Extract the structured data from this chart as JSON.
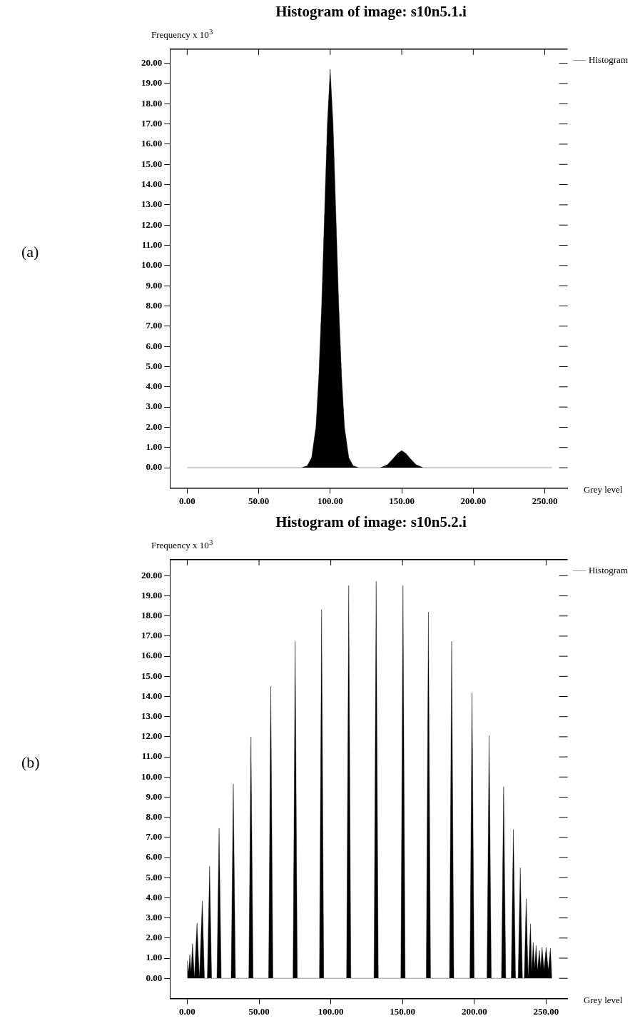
{
  "chart_data": [
    {
      "type": "area",
      "title": "Histogram of image: s10n5.1.i",
      "xlabel": "Grey level",
      "ylabel": "Frequency x 10$^{3}$",
      "annotations": [
        "(a)"
      ],
      "legend": "top right",
      "x": [
        0,
        80,
        84,
        87,
        90,
        92,
        94,
        96,
        98,
        100,
        102,
        104,
        106,
        108,
        110,
        113,
        116,
        120,
        135,
        140,
        144,
        147,
        150,
        153,
        156,
        160,
        165,
        255
      ],
      "series": [
        {
          "name": "Histogram",
          "color": "#000000",
          "values": [
            0,
            0,
            0.1,
            0.5,
            2,
            4.5,
            8,
            12.5,
            17,
            19.7,
            17,
            12.5,
            8,
            4.5,
            2,
            0.5,
            0.1,
            0,
            0,
            0.15,
            0.45,
            0.7,
            0.85,
            0.7,
            0.45,
            0.15,
            0,
            0
          ]
        }
      ],
      "xlim": [
        -12,
        266
      ],
      "ylim": [
        -1,
        20.7
      ],
      "xticks": [
        {
          "value": 0,
          "label": "0.00"
        },
        {
          "value": 50,
          "label": "50.00"
        },
        {
          "value": 100,
          "label": "100.00"
        },
        {
          "value": 150,
          "label": "150.00"
        },
        {
          "value": 200,
          "label": "200.00"
        },
        {
          "value": 250,
          "label": "250.00"
        }
      ],
      "yticks": [
        {
          "value": 0,
          "label": "0.00"
        },
        {
          "value": 1,
          "label": "1.00"
        },
        {
          "value": 2,
          "label": "2.00"
        },
        {
          "value": 3,
          "label": "3.00"
        },
        {
          "value": 4,
          "label": "4.00"
        },
        {
          "value": 5,
          "label": "5.00"
        },
        {
          "value": 6,
          "label": "6.00"
        },
        {
          "value": 7,
          "label": "7.00"
        },
        {
          "value": 8,
          "label": "8.00"
        },
        {
          "value": 9,
          "label": "9.00"
        },
        {
          "value": 10,
          "label": "10.00"
        },
        {
          "value": 11,
          "label": "11.00"
        },
        {
          "value": 12,
          "label": "12.00"
        },
        {
          "value": 13,
          "label": "13.00"
        },
        {
          "value": 14,
          "label": "14.00"
        },
        {
          "value": 15,
          "label": "15.00"
        },
        {
          "value": 16,
          "label": "16.00"
        },
        {
          "value": 17,
          "label": "17.00"
        },
        {
          "value": 18,
          "label": "18.00"
        },
        {
          "value": 19,
          "label": "19.00"
        },
        {
          "value": 20,
          "label": "20.00"
        }
      ]
    },
    {
      "type": "area",
      "title": "Histogram of image: s10n5.2.i",
      "xlabel": "Grey level",
      "ylabel": "Frequency x 10$^{3}$",
      "annotations": [
        "(b)"
      ],
      "legend": "top right",
      "x": [
        0,
        1,
        1.8,
        2.7,
        3.7,
        5,
        6.8,
        8.5,
        10.5,
        12,
        14,
        15.6,
        17,
        20.7,
        22.2,
        23.7,
        30.6,
        32.1,
        33.6,
        42.9,
        44.4,
        45.9,
        56.7,
        58.2,
        59.7,
        73.7,
        75.2,
        76.7,
        92.1,
        93.6,
        95.1,
        111,
        112.5,
        114,
        130.1,
        131.6,
        133.1,
        148.8,
        150.3,
        151.8,
        166.5,
        168,
        169.5,
        182.7,
        184.2,
        185.7,
        196.9,
        198.4,
        199.9,
        208.8,
        210.3,
        211.8,
        218.9,
        220.4,
        221.9,
        225.7,
        227.2,
        228.7,
        230.5,
        232,
        233.5,
        234.8,
        236.1,
        237.5,
        239.1,
        240,
        241,
        242,
        243,
        244,
        245.3,
        246.2,
        247.2,
        248.5,
        250,
        251.5,
        253,
        254
      ],
      "series": [
        {
          "name": "Histogram",
          "color": "#000000",
          "values": [
            0.89,
            0.3,
            1.19,
            0.3,
            1.73,
            0,
            2.74,
            0,
            3.85,
            0,
            0,
            5.56,
            0,
            0,
            7.46,
            0,
            0,
            9.66,
            0,
            0,
            12.0,
            0,
            0,
            14.52,
            0,
            0,
            16.74,
            0,
            0,
            18.32,
            0,
            0,
            19.51,
            0,
            0,
            19.72,
            0,
            0,
            19.51,
            0,
            0,
            18.2,
            0,
            0,
            16.74,
            0,
            0,
            14.19,
            0,
            0,
            12.06,
            0,
            0,
            9.52,
            0,
            0,
            7.4,
            0,
            0,
            5.5,
            0,
            0,
            3.96,
            0,
            2.7,
            0.3,
            1.78,
            0.5,
            1.63,
            0.4,
            1.39,
            0.5,
            1.53,
            0.4,
            1.53,
            0.4,
            1.5,
            0
          ]
        }
      ],
      "xlim": [
        -12,
        265
      ],
      "ylim": [
        -1,
        20.8
      ],
      "xticks": [
        {
          "value": 0,
          "label": "0.00"
        },
        {
          "value": 50,
          "label": "50.00"
        },
        {
          "value": 100,
          "label": "100.00"
        },
        {
          "value": 150,
          "label": "150.00"
        },
        {
          "value": 200,
          "label": "200.00"
        },
        {
          "value": 250,
          "label": "250.00"
        }
      ],
      "yticks": [
        {
          "value": 0,
          "label": "0.00"
        },
        {
          "value": 1,
          "label": "1.00"
        },
        {
          "value": 2,
          "label": "2.00"
        },
        {
          "value": 3,
          "label": "3.00"
        },
        {
          "value": 4,
          "label": "4.00"
        },
        {
          "value": 5,
          "label": "5.00"
        },
        {
          "value": 6,
          "label": "6.00"
        },
        {
          "value": 7,
          "label": "7.00"
        },
        {
          "value": 8,
          "label": "8.00"
        },
        {
          "value": 9,
          "label": "9.00"
        },
        {
          "value": 10,
          "label": "10.00"
        },
        {
          "value": 11,
          "label": "11.00"
        },
        {
          "value": 12,
          "label": "12.00"
        },
        {
          "value": 13,
          "label": "13.00"
        },
        {
          "value": 14,
          "label": "14.00"
        },
        {
          "value": 15,
          "label": "15.00"
        },
        {
          "value": 16,
          "label": "16.00"
        },
        {
          "value": 17,
          "label": "17.00"
        },
        {
          "value": 18,
          "label": "18.00"
        },
        {
          "value": 19,
          "label": "19.00"
        },
        {
          "value": 20,
          "label": "20.00"
        }
      ]
    }
  ]
}
